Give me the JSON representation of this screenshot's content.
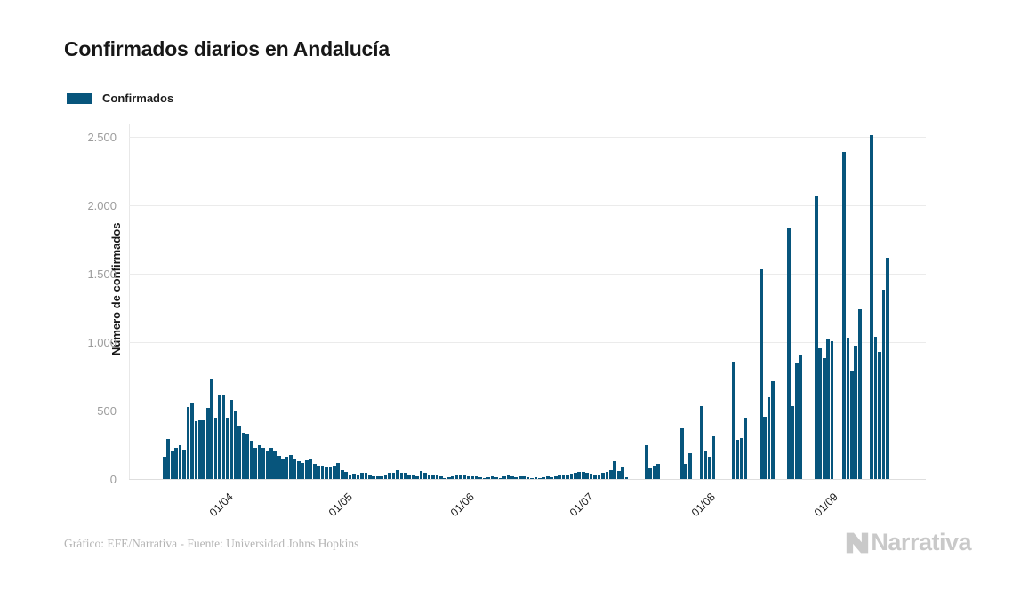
{
  "title": "Confirmados diarios en Andalucía",
  "legend": {
    "label": "Confirmados"
  },
  "colors": {
    "bar": "#07557c",
    "grid": "#ebebeb",
    "axis": "#dedede",
    "ytick_text": "#9c9c9c",
    "xtick_text": "#1f1f1f",
    "footer_text": "#b4b4b4",
    "watermark": "#c9c9c9"
  },
  "y_axis": {
    "title": "Número de confirmados",
    "ticks": [
      {
        "value": 0,
        "label": "0"
      },
      {
        "value": 500,
        "label": "500"
      },
      {
        "value": 1000,
        "label": "1.000"
      },
      {
        "value": 1500,
        "label": "1.500"
      },
      {
        "value": 2000,
        "label": "2.000"
      },
      {
        "value": 2500,
        "label": "2.500"
      }
    ]
  },
  "x_axis": {
    "ticks": [
      {
        "index": 14,
        "label": "01/04"
      },
      {
        "index": 44,
        "label": "01/05"
      },
      {
        "index": 75,
        "label": "01/06"
      },
      {
        "index": 105,
        "label": "01/07"
      },
      {
        "index": 136,
        "label": "01/08"
      },
      {
        "index": 167,
        "label": "01/09"
      }
    ]
  },
  "footer": {
    "credit": "Gráfico: EFE/Narrativa - Fuente: Universidad Johns Hopkins"
  },
  "watermark": {
    "text": "Narrativa"
  },
  "chart_data": {
    "type": "bar",
    "title": "Confirmados diarios en Andalucía",
    "xlabel": "",
    "ylabel": "Número de confirmados",
    "ylim": [
      0,
      2500
    ],
    "grid": true,
    "legend_position": "top-left",
    "series": [
      {
        "name": "Confirmados",
        "note": "daily values, one bar per day from mid-March to mid-September; x ticks mark month starts (01/04 … 01/09)",
        "values": [
          160,
          290,
          210,
          225,
          250,
          215,
          525,
          555,
          420,
          430,
          430,
          520,
          730,
          450,
          610,
          620,
          450,
          580,
          500,
          390,
          340,
          330,
          280,
          230,
          250,
          230,
          200,
          225,
          205,
          170,
          150,
          160,
          175,
          140,
          130,
          120,
          135,
          150,
          110,
          100,
          95,
          90,
          85,
          100,
          120,
          68,
          50,
          26,
          40,
          26,
          48,
          48,
          26,
          22,
          18,
          18,
          31,
          44,
          48,
          66,
          48,
          48,
          31,
          31,
          22,
          61,
          44,
          26,
          35,
          26,
          18,
          9,
          10,
          22,
          26,
          31,
          26,
          22,
          18,
          18,
          13,
          9,
          13,
          18,
          13,
          9,
          18,
          31,
          22,
          13,
          18,
          22,
          13,
          9,
          13,
          9,
          13,
          18,
          13,
          22,
          31,
          35,
          30,
          40,
          44,
          50,
          55,
          45,
          40,
          33,
          33,
          44,
          55,
          66,
          130,
          60,
          82,
          15,
          0,
          0,
          0,
          0,
          245,
          76,
          95,
          110,
          0,
          0,
          0,
          0,
          0,
          370,
          112,
          189,
          0,
          0,
          533,
          206,
          160,
          314,
          0,
          0,
          0,
          0,
          860,
          287,
          298,
          447,
          0,
          0,
          0,
          1530,
          456,
          595,
          713,
          0,
          0,
          0,
          1830,
          534,
          843,
          901,
          0,
          0,
          0,
          2070,
          955,
          881,
          1019,
          1008,
          0,
          0,
          2390,
          1030,
          793,
          972,
          1240,
          0,
          0,
          2510,
          1037,
          929,
          1380,
          1620
        ]
      }
    ]
  }
}
